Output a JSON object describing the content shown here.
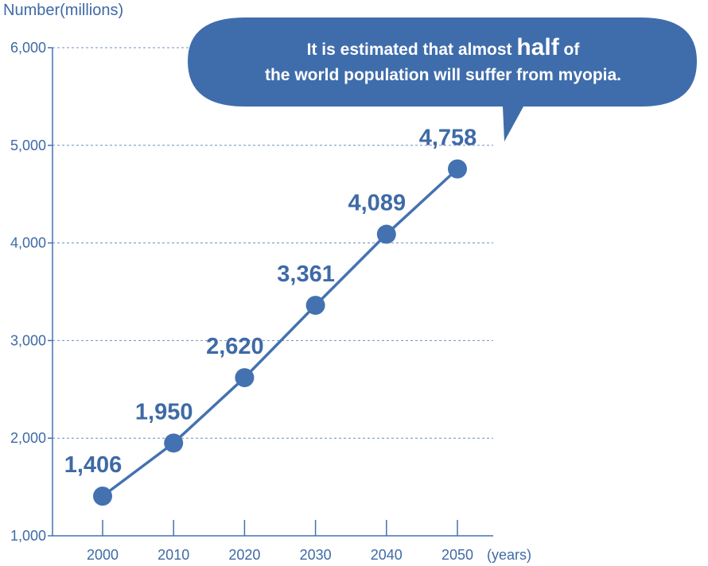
{
  "chart_data": {
    "type": "line",
    "title": "",
    "ylabel": "Number(millions)",
    "xlabel": "(years)",
    "ylim": [
      1000,
      6000
    ],
    "yticks": [
      1000,
      2000,
      3000,
      4000,
      5000,
      6000
    ],
    "ytick_labels": [
      "1,000",
      "2,000",
      "3,000",
      "4,000",
      "5,000",
      "6,000"
    ],
    "categories": [
      "2000",
      "2010",
      "2020",
      "2030",
      "2040",
      "2050"
    ],
    "values": [
      1406,
      1950,
      2620,
      3361,
      4089,
      4758
    ],
    "value_labels": [
      "1,406",
      "1,950",
      "2,620",
      "3,361",
      "4,089",
      "4,758"
    ],
    "grid": true,
    "color": "#4472b0",
    "annotation": {
      "before": "It is estimated that almost ",
      "highlight": "half",
      "after": " of",
      "line2": "the world population will suffer from myopia."
    }
  }
}
